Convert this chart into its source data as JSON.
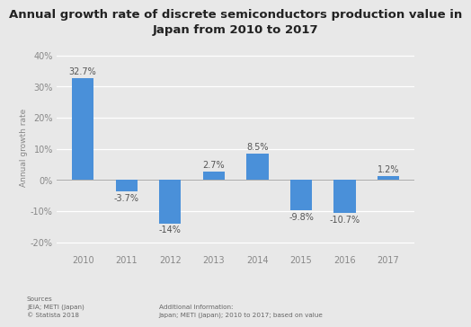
{
  "title": "Annual growth rate of discrete semiconductors production value in\nJapan from 2010 to 2017",
  "years": [
    "2010",
    "2011",
    "2012",
    "2013",
    "2014",
    "2015",
    "2016",
    "2017"
  ],
  "values": [
    32.7,
    -3.7,
    -14.0,
    2.7,
    8.5,
    -9.8,
    -10.7,
    1.2
  ],
  "labels": [
    "32.7%",
    "-3.7%",
    "-14%",
    "2.7%",
    "8.5%",
    "-9.8%",
    "-10.7%",
    "1.2%"
  ],
  "bar_color": "#4a90d9",
  "background_color": "#e8e8e8",
  "plot_bg_color": "#e8e8e8",
  "ylabel": "Annual growth rate",
  "ylim": [
    -23,
    44
  ],
  "yticks": [
    -20,
    -10,
    0,
    10,
    20,
    30,
    40
  ],
  "ytick_labels": [
    "-20%",
    "-10%",
    "0%",
    "10%",
    "20%",
    "30%",
    "40%"
  ],
  "title_fontsize": 9.5,
  "label_fontsize": 7,
  "ylabel_fontsize": 6.5,
  "tick_fontsize": 7,
  "source_text": "Sources\nJEIA; METI (Japan)\n© Statista 2018",
  "additional_text": "Additional Information:\nJapan; METI (Japan); 2010 to 2017; based on value"
}
